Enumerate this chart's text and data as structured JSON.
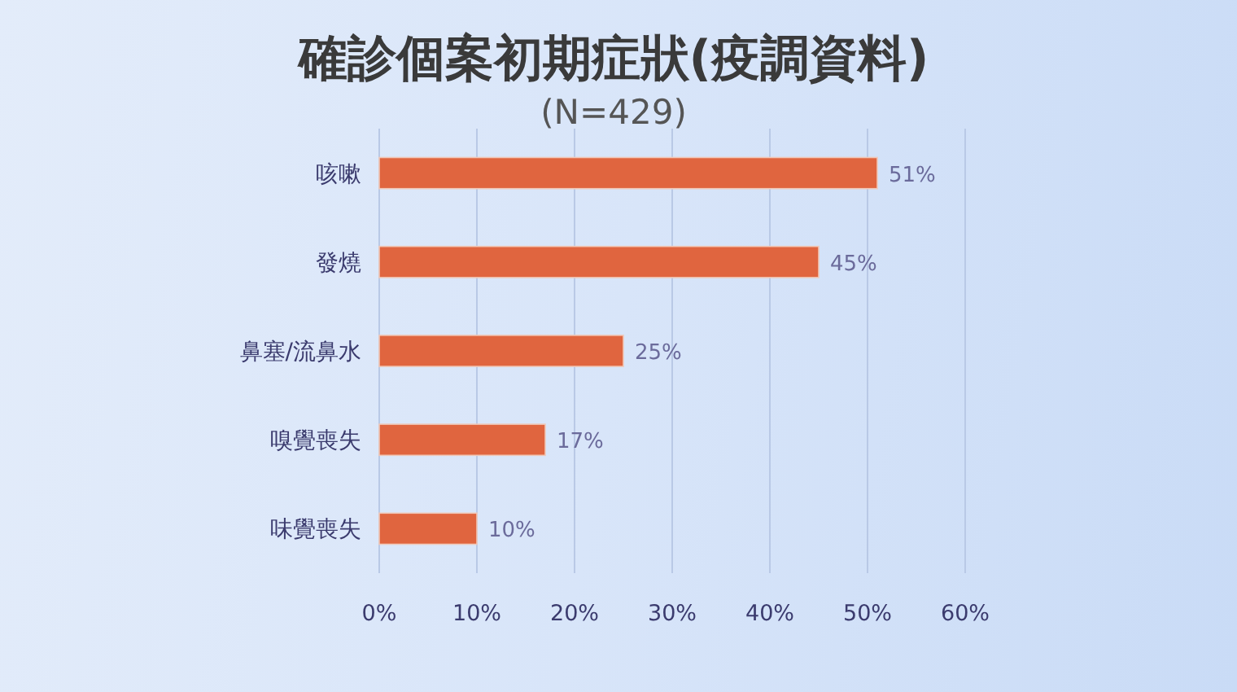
{
  "chart_data": {
    "type": "bar",
    "orientation": "horizontal",
    "title": "確診個案初期症狀(疫調資料)",
    "subtitle": "(N=429)",
    "categories": [
      "咳嗽",
      "發燒",
      "鼻塞/流鼻水",
      "嗅覺喪失",
      "味覺喪失"
    ],
    "values": [
      51,
      45,
      25,
      17,
      10
    ],
    "value_labels": [
      "51%",
      "45%",
      "25%",
      "17%",
      "10%"
    ],
    "color": "#e0653f",
    "xlim": [
      0,
      60
    ],
    "xticks": [
      {
        "value": 0,
        "label": "0%"
      },
      {
        "value": 10,
        "label": "10%"
      },
      {
        "value": 20,
        "label": "20%"
      },
      {
        "value": 30,
        "label": "30%"
      },
      {
        "value": 40,
        "label": "40%"
      },
      {
        "value": 50,
        "label": "50%"
      },
      {
        "value": 60,
        "label": "60%"
      }
    ],
    "grid": "x"
  }
}
